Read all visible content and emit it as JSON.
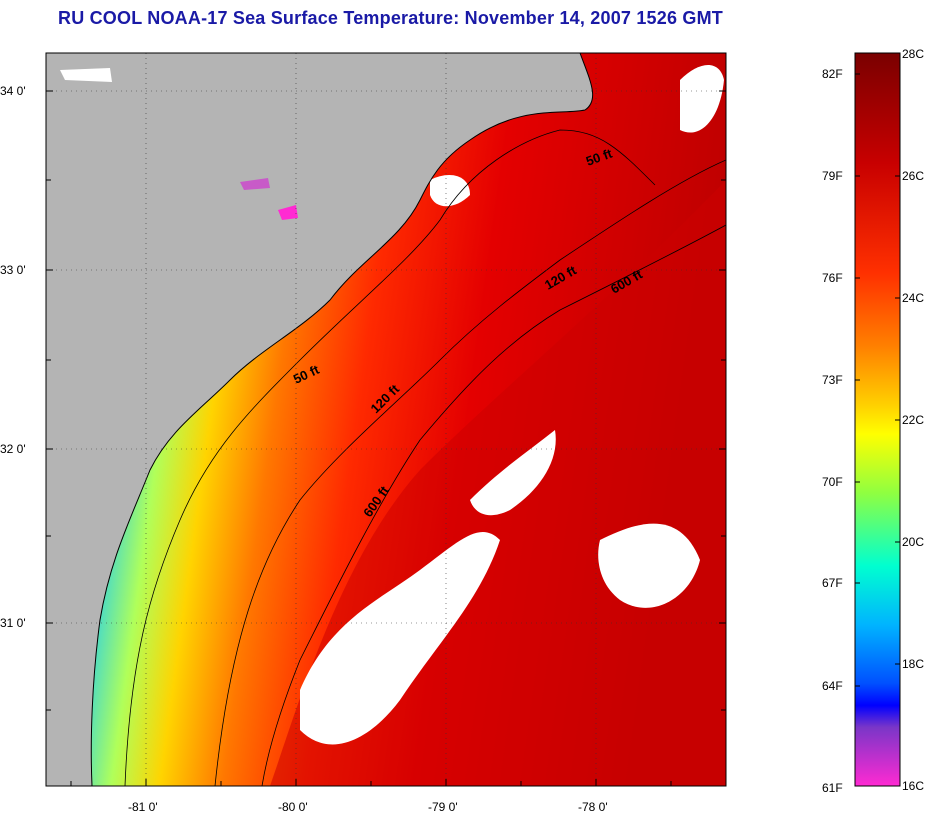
{
  "title": "RU COOL  NOAA-17  Sea Surface Temperature:  November 14, 2007 1526 GMT",
  "map": {
    "lat_labels": [
      "34 0'",
      "33 0'",
      "32 0'",
      "31 0'"
    ],
    "lon_labels": [
      "-81 0'",
      "-80 0'",
      "-79 0'",
      "-78 0'"
    ],
    "contour_labels": [
      "50 ft",
      "120 ft",
      "600 ft",
      "50 ft",
      "120 ft",
      "600 ft"
    ],
    "colors": {
      "land": "#b4b4b4",
      "cloud": "#ffffff",
      "coast": "#000000"
    }
  },
  "colorbar": {
    "f_labels": [
      "82F",
      "79F",
      "76F",
      "73F",
      "70F",
      "67F",
      "64F",
      "61F"
    ],
    "c_labels": [
      "28C",
      "26C",
      "24C",
      "22C",
      "20C",
      "18C",
      "16C"
    ],
    "stops": [
      "#8b0000",
      "#c80000",
      "#ff2a00",
      "#ff7a00",
      "#ffc800",
      "#ffff00",
      "#8cff3c",
      "#00ffc8",
      "#00c8ff",
      "#0064ff",
      "#0000ff",
      "#8c3cc8",
      "#ff2ad2"
    ]
  }
}
